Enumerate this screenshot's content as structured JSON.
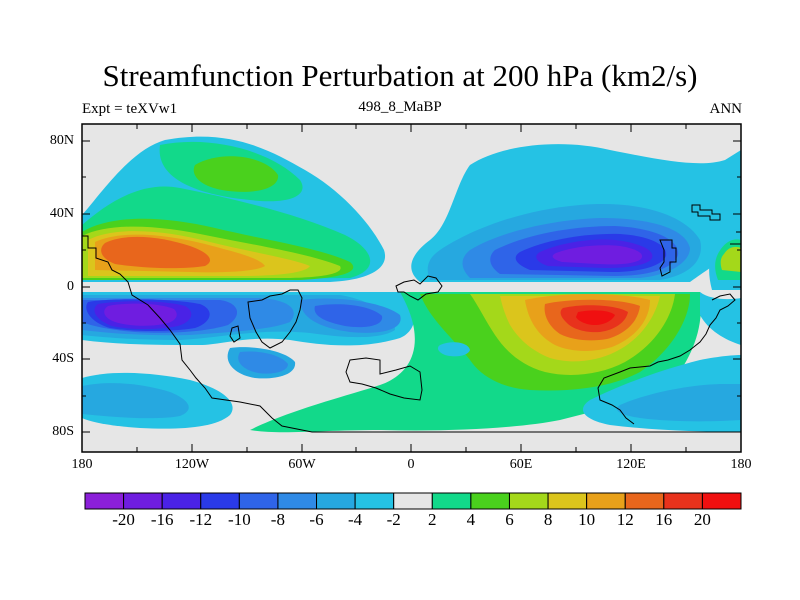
{
  "title": "Streamfunction Perturbation at 200 hPa (km2/s)",
  "subtitle_left": "Expt = teXVw1",
  "subtitle_center": "498_8_MaBP",
  "subtitle_right": "ANN",
  "y_axis_labels": [
    "80N",
    "40N",
    "0",
    "40S",
    "80S"
  ],
  "x_axis_labels": [
    "180",
    "120W",
    "60W",
    "0",
    "60E",
    "120E",
    "180"
  ],
  "colorbar": {
    "labels": [
      "-20",
      "-16",
      "-12",
      "-10",
      "-8",
      "-6",
      "-4",
      "-2",
      "2",
      "4",
      "6",
      "8",
      "10",
      "12",
      "16",
      "20"
    ],
    "colors": [
      "#8b1fd9",
      "#6f1de0",
      "#4a22e6",
      "#2a3ae8",
      "#2f64e8",
      "#2f8ae6",
      "#26a8e0",
      "#25c2e4",
      "#e6e6e6",
      "#12d98a",
      "#4ad11d",
      "#a4d81a",
      "#dbc51c",
      "#e8a11a",
      "#e8661c",
      "#e8321c",
      "#f01010"
    ]
  }
}
